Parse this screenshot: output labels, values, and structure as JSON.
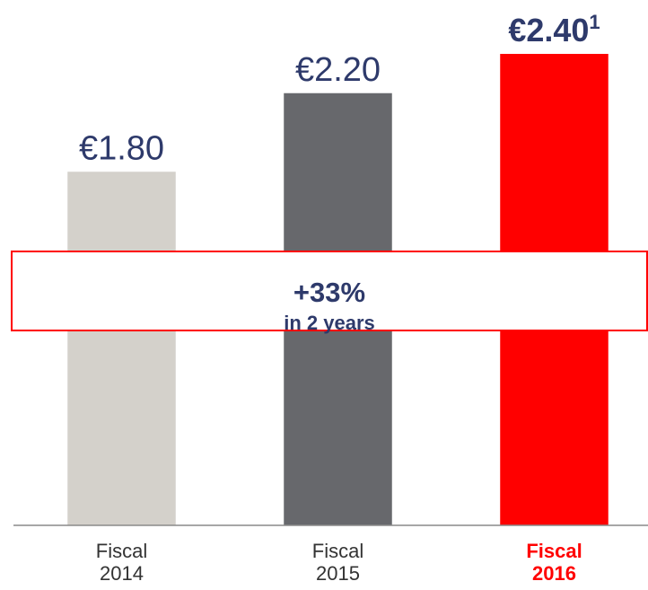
{
  "chart_data": {
    "type": "bar",
    "categories": [
      "Fiscal 2014",
      "Fiscal 2015",
      "Fiscal 2016"
    ],
    "values": [
      1.8,
      2.2,
      2.4
    ],
    "value_labels": [
      "€1.80",
      "€2.20",
      "€2.40"
    ],
    "footnote_markers": [
      null,
      null,
      "1"
    ],
    "colors": [
      "#d4d1cb",
      "#67686c",
      "#ff0000"
    ],
    "highlight_index": 2,
    "ylim": [
      0,
      2.4
    ],
    "annotation": {
      "change": "+33%",
      "period": "in 2 years"
    }
  }
}
